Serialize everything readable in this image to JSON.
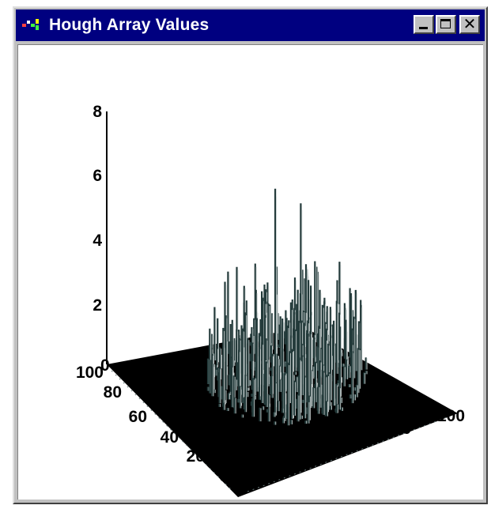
{
  "window": {
    "title": "Hough Array Values",
    "icon": "hough-app-icon",
    "controls": {
      "minimize": "minimize-icon",
      "maximize": "maximize-icon",
      "close": "close-icon"
    }
  },
  "colors": {
    "titlebar": "#000080",
    "title_text": "#ffffff",
    "chrome": "#c0c0c0",
    "plot_background": "#ffffff",
    "surface_fill": "#000000",
    "bar_color": "#233a3a",
    "axis_text": "#000000"
  },
  "chart_data": {
    "type": "surface",
    "title": "",
    "xlabel": "",
    "ylabel": "",
    "zlabel": "",
    "z_ticks": [
      "8",
      "6",
      "4",
      "2",
      "0"
    ],
    "x_ticks": [
      "0",
      "20",
      "40",
      "60",
      "80",
      "100"
    ],
    "y_ticks": [
      "0",
      "20",
      "40",
      "60",
      "80",
      "100"
    ],
    "xlim": [
      0,
      100
    ],
    "ylim": [
      0,
      100
    ],
    "zlim": [
      0,
      8
    ],
    "grid": false,
    "peaks": [
      {
        "x": 48,
        "y": 52,
        "value": 6.3
      },
      {
        "x": 62,
        "y": 56,
        "value": 5.3
      }
    ],
    "typical_nonzero_range": [
      0.5,
      2.7
    ]
  }
}
